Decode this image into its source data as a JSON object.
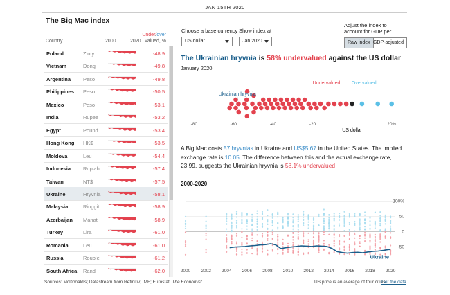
{
  "date": "JAN 15TH 2020",
  "table": {
    "title": "The Big Mac index",
    "col_country": "Country",
    "year_start": "2000",
    "year_end": "2020",
    "under_label": "Under",
    "slash": "/",
    "over_label": "over",
    "valued_label": "valued, %",
    "rows": [
      {
        "country": "Poland",
        "currency": "Zloty",
        "value": "-48.9"
      },
      {
        "country": "Vietnam",
        "currency": "Dong",
        "value": "-49.8"
      },
      {
        "country": "Argentina",
        "currency": "Peso",
        "value": "-49.8"
      },
      {
        "country": "Philippines",
        "currency": "Peso",
        "value": "-50.5"
      },
      {
        "country": "Mexico",
        "currency": "Peso",
        "value": "-53.1"
      },
      {
        "country": "India",
        "currency": "Rupee",
        "value": "-53.2"
      },
      {
        "country": "Egypt",
        "currency": "Pound",
        "value": "-53.4"
      },
      {
        "country": "Hong Kong",
        "currency": "HK$",
        "value": "-53.5"
      },
      {
        "country": "Moldova",
        "currency": "Leu",
        "value": "-54.4"
      },
      {
        "country": "Indonesia",
        "currency": "Rupiah",
        "value": "-57.4"
      },
      {
        "country": "Taiwan",
        "currency": "NT$",
        "value": "-57.5"
      },
      {
        "country": "Ukraine",
        "currency": "Hryvnia",
        "value": "-58.1"
      },
      {
        "country": "Malaysia",
        "currency": "Ringgit",
        "value": "-58.9"
      },
      {
        "country": "Azerbaijan",
        "currency": "Manat",
        "value": "-58.9"
      },
      {
        "country": "Turkey",
        "currency": "Lira",
        "value": "-61.0"
      },
      {
        "country": "Romania",
        "currency": "Leu",
        "value": "-61.0"
      },
      {
        "country": "Russia",
        "currency": "Rouble",
        "value": "-61.2"
      },
      {
        "country": "South Africa",
        "currency": "Rand",
        "value": "-62.0"
      }
    ],
    "selected_index": 11
  },
  "controls": {
    "base_label": "Choose a base currency",
    "base_value": "US dollar",
    "show_label": "Show index at",
    "show_value": "Jan 2020",
    "adjust_label": "Adjust the index to account for GDP per person",
    "raw_button": "Raw index",
    "gdp_button": "GDP-adjusted"
  },
  "headline": {
    "currency": "The Ukrainian hryvnia",
    "is": " is ",
    "pct": "58% undervalued",
    "rest": " against the US dollar"
  },
  "subtitle": "January 2020",
  "paragraph": {
    "p1": "A Big Mac costs ",
    "local_price": "57 hryvnias",
    "p2": " in Ukraine and ",
    "usd_price": "US$5.67",
    "p3": " in the United States. The implied exchange rate is ",
    "implied": "10.05",
    "p4": ". The difference between this and the actual exchange rate, ",
    "actual": "23.99",
    "p5": ", suggests the Ukrainian hryvnia is ",
    "verdict": "58.1% undervalued"
  },
  "history_title": "2000-2020",
  "footer": {
    "sources_prefix": "Sources: McDonald's; Datastream from Refinitiv; IMF; Eurostat; ",
    "sources_pub": "The Economist",
    "note": "US price is an average of four cities",
    "link": "Get the data"
  },
  "colors": {
    "under": "#e3424e",
    "over": "#5bc0e6",
    "highlight": "#1b5f8c",
    "us": "#222222"
  },
  "chart_data": [
    {
      "type": "scatter",
      "title": "January 2020",
      "labels": {
        "under": "Undervalued",
        "over": "Overvalued",
        "base": "US dollar",
        "highlight": "Ukrainian hryvnia"
      },
      "xlim": [
        -85,
        25
      ],
      "xticks": [
        -80,
        -60,
        -40,
        -20,
        20
      ],
      "xtick_labels": [
        "-80",
        "-60",
        "-40",
        "-20",
        "20%"
      ],
      "base_value": 0,
      "highlight_value": -58.1,
      "values": [
        -61,
        -62,
        -58.9,
        -58.9,
        -57.5,
        -57.4,
        -54.4,
        -53.5,
        -53.4,
        -53.2,
        -53.1,
        -50.5,
        -49.8,
        -49.8,
        -48.9,
        -47,
        -46,
        -45,
        -44,
        -43,
        -42,
        -41,
        -40,
        -39,
        -38,
        -37,
        -36,
        -35,
        -34,
        -33,
        -32,
        -31,
        -30,
        -29,
        -28,
        -27,
        -26,
        -25,
        -24,
        -22,
        -21,
        -19,
        -18,
        -16,
        -14,
        -12,
        -9,
        -6,
        -3,
        0,
        5,
        13,
        20
      ]
    },
    {
      "type": "line",
      "title": "2000-2020",
      "x_ticks": [
        2000,
        2002,
        2004,
        2006,
        2008,
        2010,
        2012,
        2014,
        2016,
        2018,
        2020
      ],
      "yticks": [
        100,
        50,
        0,
        -50
      ],
      "ytick_labels": [
        "100%",
        "50",
        "0",
        "-50"
      ],
      "ylim": [
        -80,
        110
      ],
      "series": [
        {
          "name": "Ukraine",
          "x": [
            2004.3,
            2004.8,
            2005.3,
            2005.8,
            2006.3,
            2006.8,
            2007.3,
            2007.8,
            2008.3,
            2008.8,
            2009.3,
            2009.8,
            2010.3,
            2010.8,
            2011.3,
            2011.8,
            2012.3,
            2012.8,
            2013.3,
            2013.8,
            2014.3,
            2014.8,
            2015.3,
            2015.8,
            2016.3,
            2016.8,
            2017.3,
            2017.8,
            2018.3,
            2018.8,
            2019.3,
            2019.8,
            2020.0
          ],
          "values": [
            -52,
            -50,
            -49,
            -48,
            -46,
            -45,
            -43,
            -42,
            -39,
            -43,
            -55,
            -52,
            -50,
            -48,
            -46,
            -47,
            -48,
            -46,
            -47,
            -48,
            -55,
            -65,
            -68,
            -70,
            -68,
            -67,
            -69,
            -66,
            -64,
            -63,
            -61,
            -58,
            -58
          ]
        }
      ]
    }
  ]
}
